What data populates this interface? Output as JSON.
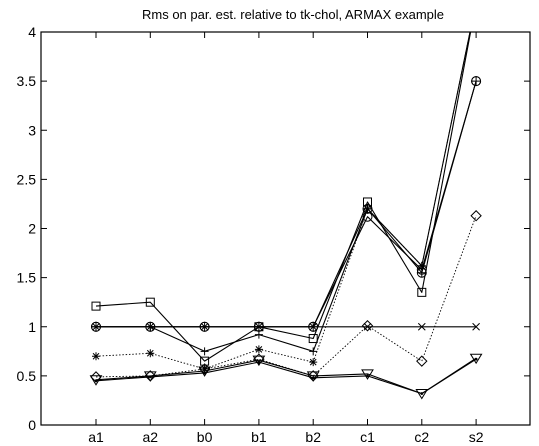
{
  "chart_data": {
    "type": "line",
    "title": "Rms on par. est. relative to tk-chol, ARMAX example",
    "xlabel": "",
    "ylabel": "",
    "categories": [
      "a1",
      "a2",
      "b0",
      "b1",
      "b2",
      "c1",
      "c2",
      "s2"
    ],
    "ylim": [
      0,
      4
    ],
    "yticks": [
      "0",
      "0.5",
      "1",
      "1.5",
      "2",
      "2.5",
      "3",
      "3.5",
      "4"
    ],
    "grid": false,
    "legend": "none",
    "series": [
      {
        "marker": "x",
        "line": "solid",
        "values": [
          1.0,
          1.0,
          1.0,
          1.0,
          1.0,
          1.0,
          1.0,
          1.0
        ]
      },
      {
        "marker": "circle-plus",
        "line": "solid",
        "values": [
          1.0,
          1.0,
          1.0,
          1.0,
          1.0,
          2.2,
          1.55,
          3.5
        ]
      },
      {
        "marker": "square",
        "line": "solid",
        "values": [
          1.21,
          1.25,
          0.65,
          1.0,
          0.88,
          2.27,
          1.35,
          4.3
        ]
      },
      {
        "marker": "circle",
        "line": "solid",
        "values": [
          1.0,
          1.0,
          1.0,
          1.0,
          1.0,
          2.12,
          1.58,
          3.5
        ]
      },
      {
        "marker": "plus",
        "line": "solid",
        "values": [
          1.0,
          1.0,
          0.75,
          0.92,
          0.75,
          2.2,
          1.62,
          4.3
        ]
      },
      {
        "marker": "star",
        "line": "dotted",
        "values": [
          0.7,
          0.73,
          0.57,
          0.77,
          0.64,
          2.2,
          1.62,
          4.3
        ]
      },
      {
        "marker": "diamond",
        "line": "dotted",
        "values": [
          0.49,
          0.5,
          0.57,
          0.67,
          0.5,
          1.01,
          0.65,
          2.13
        ]
      },
      {
        "marker": "triangle-down",
        "line": "solid",
        "values": [
          0.46,
          0.5,
          0.55,
          0.66,
          0.5,
          0.52,
          0.32,
          0.68
        ]
      },
      {
        "marker": "point",
        "line": "solid",
        "values": [
          0.45,
          0.49,
          0.53,
          0.64,
          0.48,
          0.5,
          0.32,
          0.67
        ]
      }
    ],
    "colors": {
      "line": "#000000",
      "background": "#ffffff",
      "axes": "#000000"
    }
  }
}
